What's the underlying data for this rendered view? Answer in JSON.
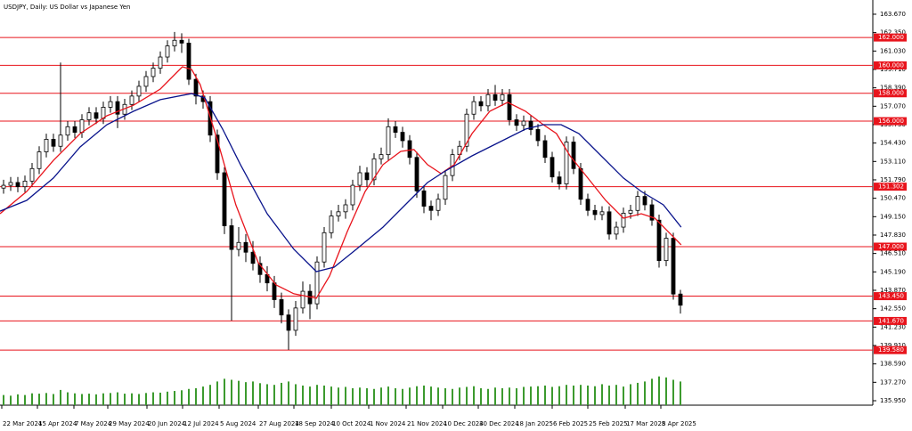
{
  "chart_data": {
    "type": "candlestick",
    "title": "USDJPY, Daily:  US Dollar vs Japanese Yen",
    "open": [
      151.2,
      151.4,
      151.6,
      151.3,
      151.7,
      152.6,
      153.8,
      154.7,
      154.2,
      155.0,
      155.6,
      155.2,
      156.1,
      156.6,
      156.2,
      157.0,
      157.4,
      156.5,
      157.2,
      157.8,
      158.5,
      159.2,
      159.8,
      160.6,
      161.4,
      161.8,
      161.6,
      159.0,
      157.8,
      157.4,
      155.0,
      152.3,
      148.5,
      146.8,
      147.3,
      146.6,
      145.8,
      145.0,
      144.4,
      143.2,
      142.1,
      141.0,
      142.6,
      143.8,
      142.9,
      145.9,
      148.0,
      149.2,
      149.5,
      150.0,
      151.4,
      152.3,
      151.8,
      153.3,
      153.6,
      155.6,
      155.2,
      154.6,
      153.4,
      151.0,
      149.9,
      149.6,
      150.4,
      152.1,
      153.6,
      154.2,
      156.5,
      157.4,
      157.1,
      157.9,
      157.5,
      157.9,
      156.1,
      155.7,
      156.0,
      155.4,
      154.6,
      153.4,
      152.0,
      151.5,
      154.5,
      152.6,
      150.4,
      149.6,
      149.3,
      149.5,
      147.9,
      148.4,
      149.4,
      149.6,
      150.6,
      150.0,
      148.9,
      146.0,
      147.6,
      143.6
    ],
    "high": [
      151.8,
      152.0,
      152.0,
      152.1,
      153.0,
      154.2,
      155.1,
      155.1,
      160.2,
      156.0,
      156.0,
      156.5,
      157.0,
      157.0,
      157.4,
      157.8,
      157.8,
      157.6,
      158.2,
      158.9,
      159.6,
      160.2,
      161.0,
      161.8,
      162.4,
      162.3,
      161.9,
      159.4,
      158.2,
      157.8,
      155.4,
      152.7,
      149.0,
      148.4,
      147.9,
      147.4,
      146.3,
      145.6,
      144.9,
      143.7,
      142.5,
      143.1,
      144.5,
      144.3,
      146.3,
      148.4,
      149.6,
      150.0,
      150.4,
      151.8,
      152.8,
      152.7,
      153.7,
      154.1,
      156.2,
      156.0,
      155.6,
      155.0,
      153.8,
      151.4,
      150.3,
      150.8,
      152.5,
      154.0,
      154.6,
      156.9,
      157.8,
      157.8,
      158.3,
      158.6,
      158.3,
      158.3,
      156.5,
      156.4,
      156.4,
      155.8,
      155.0,
      153.8,
      152.4,
      154.9,
      154.9,
      153.0,
      150.8,
      150.0,
      149.9,
      149.9,
      148.8,
      149.8,
      150.0,
      151.0,
      151.0,
      150.4,
      149.3,
      148.0,
      148.0,
      143.9
    ],
    "low": [
      150.8,
      151.0,
      150.9,
      150.9,
      151.3,
      152.2,
      153.4,
      153.8,
      153.8,
      154.6,
      154.8,
      154.8,
      155.7,
      155.8,
      155.8,
      156.6,
      155.5,
      156.1,
      156.8,
      157.4,
      158.1,
      158.8,
      159.4,
      160.2,
      161.0,
      160.9,
      158.6,
      157.2,
      156.9,
      154.5,
      151.8,
      147.9,
      141.7,
      146.3,
      145.9,
      145.3,
      144.4,
      143.8,
      142.6,
      141.5,
      139.6,
      140.6,
      142.2,
      141.8,
      142.5,
      145.5,
      147.6,
      148.8,
      149.0,
      149.6,
      151.0,
      151.3,
      151.4,
      152.9,
      153.2,
      154.8,
      154.1,
      152.9,
      150.5,
      149.4,
      148.9,
      149.2,
      150.0,
      151.7,
      153.2,
      153.8,
      156.1,
      156.7,
      156.7,
      157.1,
      157.1,
      155.7,
      155.3,
      155.3,
      155.0,
      154.2,
      153.0,
      151.6,
      151.1,
      151.1,
      152.2,
      150.0,
      149.2,
      148.9,
      148.9,
      147.5,
      147.5,
      148.0,
      149.0,
      149.2,
      149.6,
      148.5,
      145.5,
      145.6,
      143.2,
      142.2
    ],
    "close": [
      151.4,
      151.6,
      151.3,
      151.7,
      152.6,
      153.8,
      154.7,
      154.2,
      155.0,
      155.6,
      155.2,
      156.1,
      156.6,
      156.2,
      157.0,
      157.4,
      156.5,
      157.2,
      157.8,
      158.5,
      159.2,
      159.8,
      160.6,
      161.4,
      161.8,
      161.6,
      159.0,
      157.8,
      157.4,
      155.0,
      152.3,
      148.5,
      146.8,
      147.3,
      146.6,
      145.8,
      145.0,
      144.4,
      143.2,
      142.1,
      141.0,
      142.6,
      143.8,
      142.9,
      145.9,
      148.0,
      149.2,
      149.5,
      150.0,
      151.4,
      152.3,
      151.8,
      153.3,
      153.6,
      155.6,
      155.2,
      154.6,
      153.4,
      151.0,
      149.9,
      149.6,
      150.4,
      152.1,
      153.6,
      154.2,
      156.5,
      157.4,
      157.1,
      157.9,
      157.5,
      157.9,
      156.1,
      155.7,
      156.0,
      155.4,
      154.6,
      153.4,
      152.0,
      151.5,
      154.5,
      152.6,
      150.4,
      149.6,
      149.3,
      149.5,
      147.9,
      148.4,
      149.4,
      149.6,
      150.6,
      150.0,
      148.9,
      146.0,
      147.6,
      143.6,
      142.8
    ],
    "volume": [
      30,
      28,
      32,
      30,
      35,
      34,
      36,
      33,
      45,
      38,
      35,
      33,
      34,
      32,
      35,
      36,
      38,
      34,
      35,
      33,
      36,
      38,
      37,
      40,
      42,
      44,
      48,
      50,
      55,
      60,
      70,
      78,
      75,
      72,
      68,
      70,
      65,
      62,
      60,
      66,
      70,
      62,
      58,
      55,
      60,
      58,
      55,
      52,
      54,
      50,
      52,
      50,
      48,
      52,
      55,
      50,
      48,
      52,
      56,
      58,
      55,
      52,
      50,
      48,
      52,
      54,
      56,
      50,
      48,
      52,
      50,
      52,
      50,
      54,
      55,
      56,
      58,
      54,
      56,
      60,
      58,
      60,
      58,
      56,
      62,
      58,
      60,
      55,
      62,
      66,
      70,
      78,
      85,
      82,
      75,
      70
    ],
    "volume_lim": [
      0,
      100
    ],
    "volume_color": "#3c9a2e",
    "up_color": "#ffffff",
    "down_color": "#000000",
    "indicators": [
      {
        "color": "#e8141c",
        "x": [
          -0.5,
          3.25,
          7,
          10.75,
          14.5,
          18.25,
          22,
          25.1,
          26.4,
          27.6,
          30.1,
          32.6,
          35.75,
          38.25,
          40.75,
          43.9,
          45.75,
          48.25,
          50.75,
          53.25,
          55.75,
          57.6,
          59.5,
          61.4,
          63.25,
          65.75,
          68.25,
          70.75,
          73.25,
          75.75,
          77.6,
          79.5,
          82,
          84.5,
          87,
          89.5,
          91.4,
          93.25,
          95.1
        ],
        "values": [
          149.36,
          150.96,
          153.19,
          155.11,
          156.39,
          157.15,
          158.3,
          159.9,
          159.71,
          158.62,
          154.47,
          150.0,
          145.85,
          144.25,
          143.62,
          143.3,
          144.89,
          148.09,
          150.96,
          152.88,
          153.83,
          153.96,
          152.88,
          152.24,
          152.88,
          155.11,
          156.71,
          157.35,
          156.71,
          155.75,
          155.11,
          153.51,
          151.92,
          150.32,
          149.04,
          149.36,
          149.04,
          148.09,
          147.13
        ]
      },
      {
        "color": "#0a148c",
        "x": [
          -0.5,
          3.25,
          7,
          10.75,
          14.5,
          18.25,
          22,
          26.4,
          28.25,
          30.75,
          33.25,
          37,
          40.75,
          43.9,
          46.4,
          49.5,
          53.25,
          57,
          59.5,
          62,
          65.75,
          69.5,
          73.25,
          75.75,
          78.25,
          80.75,
          83.25,
          87,
          89.5,
          92.6,
          95.1
        ],
        "values": [
          149.55,
          150.32,
          151.92,
          154.15,
          155.75,
          156.71,
          157.54,
          157.98,
          157.67,
          155.43,
          152.88,
          149.36,
          146.81,
          145.21,
          145.53,
          146.81,
          148.4,
          150.32,
          151.6,
          152.43,
          153.51,
          154.47,
          155.43,
          155.75,
          155.75,
          155.11,
          153.83,
          151.92,
          150.96,
          150.0,
          148.4
        ]
      }
    ],
    "levels": {
      "color": "#e8141c",
      "values": [
        {
          "value": 162,
          "label": "162.000"
        },
        {
          "value": 160,
          "label": "160.000"
        },
        {
          "value": 158,
          "label": "158.000"
        },
        {
          "value": 156,
          "label": "156.000"
        },
        {
          "value": 151.302,
          "label": "151.302"
        },
        {
          "value": 147,
          "label": "147.000"
        },
        {
          "value": 143.45,
          "label": "143.450"
        },
        {
          "value": 141.67,
          "label": "141.670"
        },
        {
          "value": 139.58,
          "label": "139.580"
        }
      ]
    },
    "ylim": [
      135.63,
      164.69
    ],
    "yticks": [
      {
        "value": 163.67,
        "label": "163.670"
      },
      {
        "value": 162.35,
        "label": "162.350"
      },
      {
        "value": 161.03,
        "label": "161.030"
      },
      {
        "value": 159.71,
        "label": "159.710"
      },
      {
        "value": 158.39,
        "label": "158.390"
      },
      {
        "value": 157.07,
        "label": "157.070"
      },
      {
        "value": 155.75,
        "label": "155.750"
      },
      {
        "value": 154.43,
        "label": "154.430"
      },
      {
        "value": 153.11,
        "label": "153.110"
      },
      {
        "value": 151.79,
        "label": "151.790"
      },
      {
        "value": 150.47,
        "label": "150.470"
      },
      {
        "value": 149.15,
        "label": "149.150"
      },
      {
        "value": 147.83,
        "label": "147.830"
      },
      {
        "value": 146.51,
        "label": "146.510"
      },
      {
        "value": 145.19,
        "label": "145.190"
      },
      {
        "value": 143.87,
        "label": "143.870"
      },
      {
        "value": 142.55,
        "label": "142.550"
      },
      {
        "value": 141.23,
        "label": "141.230"
      },
      {
        "value": 139.91,
        "label": "139.910"
      },
      {
        "value": 138.59,
        "label": "138.590"
      },
      {
        "value": 137.27,
        "label": "137.270"
      },
      {
        "value": 135.95,
        "label": "135.950"
      }
    ],
    "xlim": [
      -0.5,
      122
    ],
    "xticks": [
      {
        "value": -0.25,
        "label": "22 Mar 2024"
      },
      {
        "value": 4.75,
        "label": "15 Apr 2024"
      },
      {
        "value": 9.875,
        "label": "7 May 2024"
      },
      {
        "value": 14.625,
        "label": "29 May 2024"
      },
      {
        "value": 20.125,
        "label": "20 Jun 2024"
      },
      {
        "value": 25.125,
        "label": "12 Jul 2024"
      },
      {
        "value": 30.25,
        "label": "5 Aug 2024"
      },
      {
        "value": 35.75,
        "label": "27 Aug 2024"
      },
      {
        "value": 40.75,
        "label": "18 Sep 2024"
      },
      {
        "value": 46,
        "label": "10 Oct 2024"
      },
      {
        "value": 51.25,
        "label": "1 Nov 2024"
      },
      {
        "value": 56.5,
        "label": "21 Nov 2024"
      },
      {
        "value": 61.625,
        "label": "10 Dec 2024"
      },
      {
        "value": 66.625,
        "label": "30 Dec 2024"
      },
      {
        "value": 71.75,
        "label": "18 Jan 2025"
      },
      {
        "value": 77,
        "label": "6 Feb 2025"
      },
      {
        "value": 82,
        "label": "25 Feb 2025"
      },
      {
        "value": 87.25,
        "label": "17 Mar 2025"
      },
      {
        "value": 92.25,
        "label": "8 Apr 2025"
      }
    ]
  }
}
